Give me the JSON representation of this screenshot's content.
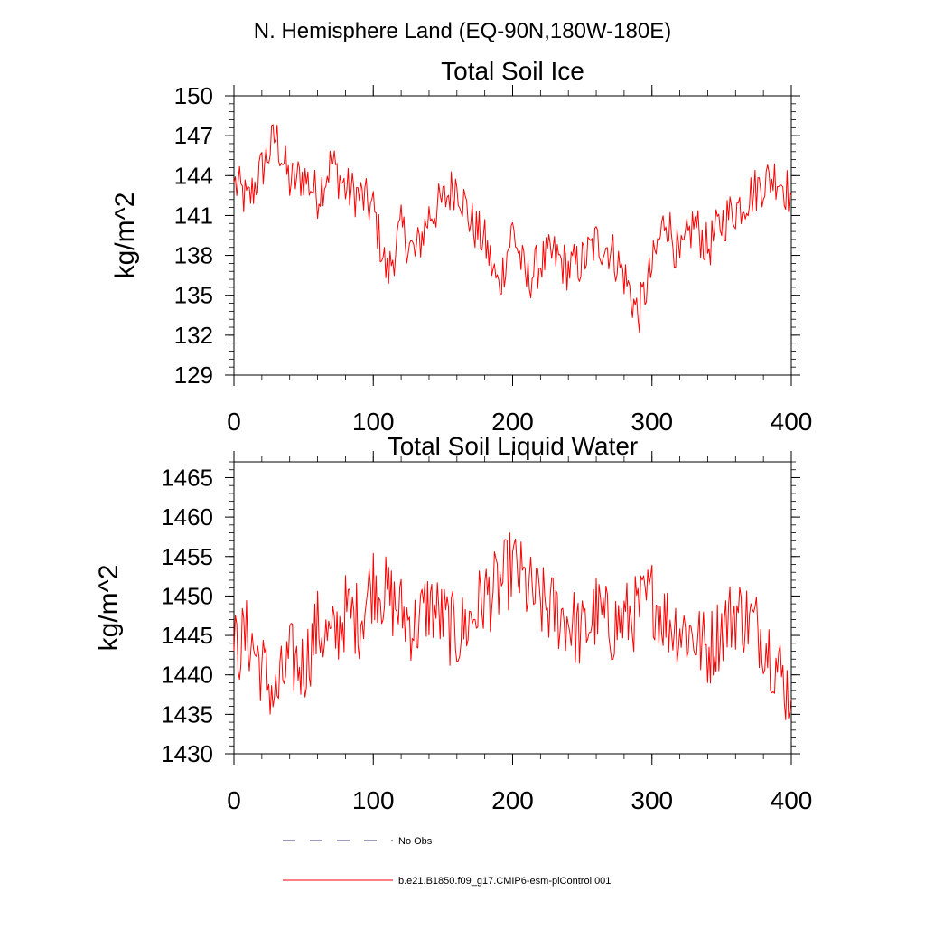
{
  "figure": {
    "suptitle": "N. Hemisphere Land (EQ-90N,180W-180E)"
  },
  "legend": [
    {
      "label": "No Obs",
      "style": "dashed",
      "color": "#3a3a7a"
    },
    {
      "label": "b.e21.B1850.f09_g17.CMIP6-esm-piControl.001",
      "style": "solid",
      "color": "#ff0000"
    }
  ],
  "chart_data": [
    {
      "type": "line",
      "title": "Total Soil Ice",
      "xlabel": "",
      "ylabel": "kg/m^2",
      "xlim": [
        0,
        400
      ],
      "ylim": [
        129,
        150
      ],
      "x_ticks": [
        "0",
        "100",
        "200",
        "300",
        "400"
      ],
      "y_ticks": [
        "129",
        "132",
        "135",
        "138",
        "141",
        "144",
        "147",
        "150"
      ],
      "series": [
        {
          "name": "b.e21.B1850.f09_g17.CMIP6-esm-piControl.001",
          "color": "#ff0000",
          "x": [
            0,
            10,
            20,
            30,
            40,
            50,
            60,
            70,
            80,
            90,
            100,
            110,
            120,
            130,
            140,
            150,
            160,
            170,
            180,
            190,
            200,
            210,
            220,
            230,
            240,
            250,
            260,
            270,
            280,
            290,
            300,
            310,
            320,
            330,
            340,
            350,
            360,
            370,
            380,
            390,
            400
          ],
          "values": [
            143.5,
            142.0,
            144.5,
            147.0,
            143.5,
            144.0,
            142.5,
            145.0,
            143.0,
            142.5,
            141.5,
            136.5,
            140.0,
            138.0,
            141.0,
            142.0,
            143.5,
            140.5,
            139.0,
            135.5,
            140.0,
            136.0,
            137.5,
            138.0,
            137.0,
            137.5,
            139.0,
            138.5,
            136.5,
            133.5,
            137.0,
            141.0,
            137.5,
            140.5,
            138.5,
            140.5,
            141.5,
            142.5,
            143.5,
            144.0,
            142.5
          ]
        }
      ]
    },
    {
      "type": "line",
      "title": "Total Soil Liquid Water",
      "xlabel": "",
      "ylabel": "kg/m^2",
      "xlim": [
        0,
        400
      ],
      "ylim": [
        1430,
        1467
      ],
      "x_ticks": [
        "0",
        "100",
        "200",
        "300",
        "400"
      ],
      "y_ticks": [
        "1430",
        "1435",
        "1440",
        "1445",
        "1450",
        "1455",
        "1460",
        "1465"
      ],
      "series": [
        {
          "name": "b.e21.B1850.f09_g17.CMIP6-esm-piControl.001",
          "color": "#ff0000",
          "x": [
            0,
            10,
            20,
            30,
            40,
            50,
            60,
            70,
            80,
            90,
            100,
            110,
            120,
            130,
            140,
            150,
            160,
            170,
            180,
            190,
            200,
            210,
            220,
            230,
            240,
            250,
            260,
            270,
            280,
            290,
            300,
            310,
            320,
            330,
            340,
            350,
            360,
            370,
            380,
            390,
            400
          ],
          "values": [
            1443.0,
            1445.0,
            1441.0,
            1437.0,
            1442.0,
            1441.0,
            1446.0,
            1444.0,
            1448.0,
            1447.0,
            1452.0,
            1450.0,
            1448.0,
            1446.0,
            1449.0,
            1447.0,
            1445.0,
            1447.0,
            1450.0,
            1451.0,
            1454.0,
            1451.0,
            1449.0,
            1448.0,
            1447.0,
            1445.0,
            1448.0,
            1446.0,
            1447.0,
            1448.0,
            1450.0,
            1447.0,
            1446.0,
            1445.0,
            1443.0,
            1446.0,
            1448.0,
            1447.0,
            1445.0,
            1441.0,
            1437.0
          ]
        }
      ]
    }
  ]
}
